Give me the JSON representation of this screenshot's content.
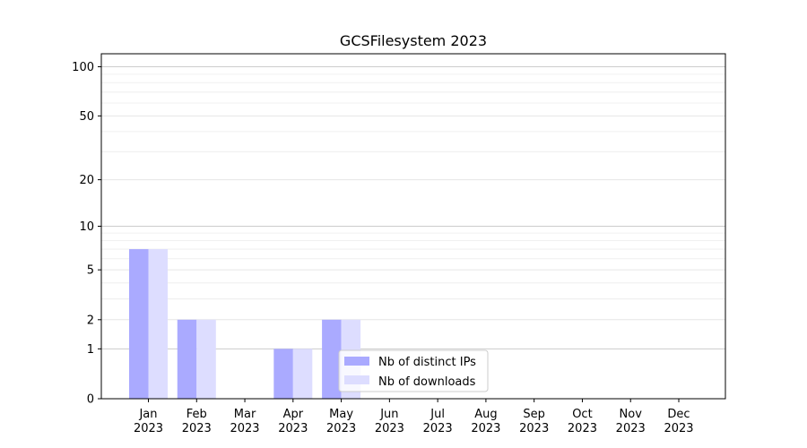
{
  "chart_data": {
    "type": "bar",
    "title": "GCSFilesystem 2023",
    "xlabel": "",
    "ylabel": "",
    "categories": [
      [
        "Jan",
        "2023"
      ],
      [
        "Feb",
        "2023"
      ],
      [
        "Mar",
        "2023"
      ],
      [
        "Apr",
        "2023"
      ],
      [
        "May",
        "2023"
      ],
      [
        "Jun",
        "2023"
      ],
      [
        "Jul",
        "2023"
      ],
      [
        "Aug",
        "2023"
      ],
      [
        "Sep",
        "2023"
      ],
      [
        "Oct",
        "2023"
      ],
      [
        "Nov",
        "2023"
      ],
      [
        "Dec",
        "2023"
      ]
    ],
    "series": [
      {
        "name": "Nb of distinct IPs",
        "color": "#aaaaff",
        "values": [
          7,
          2,
          0,
          1,
          2,
          0,
          0,
          0,
          0,
          0,
          0,
          0
        ]
      },
      {
        "name": "Nb of downloads",
        "color": "#ddddff",
        "values": [
          7,
          2,
          0,
          1,
          2,
          0,
          0,
          0,
          0,
          0,
          0,
          0
        ]
      }
    ],
    "yscale": "log(1+y)",
    "ylim": [
      0,
      120
    ],
    "yticks": [
      0,
      1,
      2,
      5,
      10,
      20,
      50,
      100
    ],
    "grid": true,
    "legend_position": "bottom-center"
  }
}
